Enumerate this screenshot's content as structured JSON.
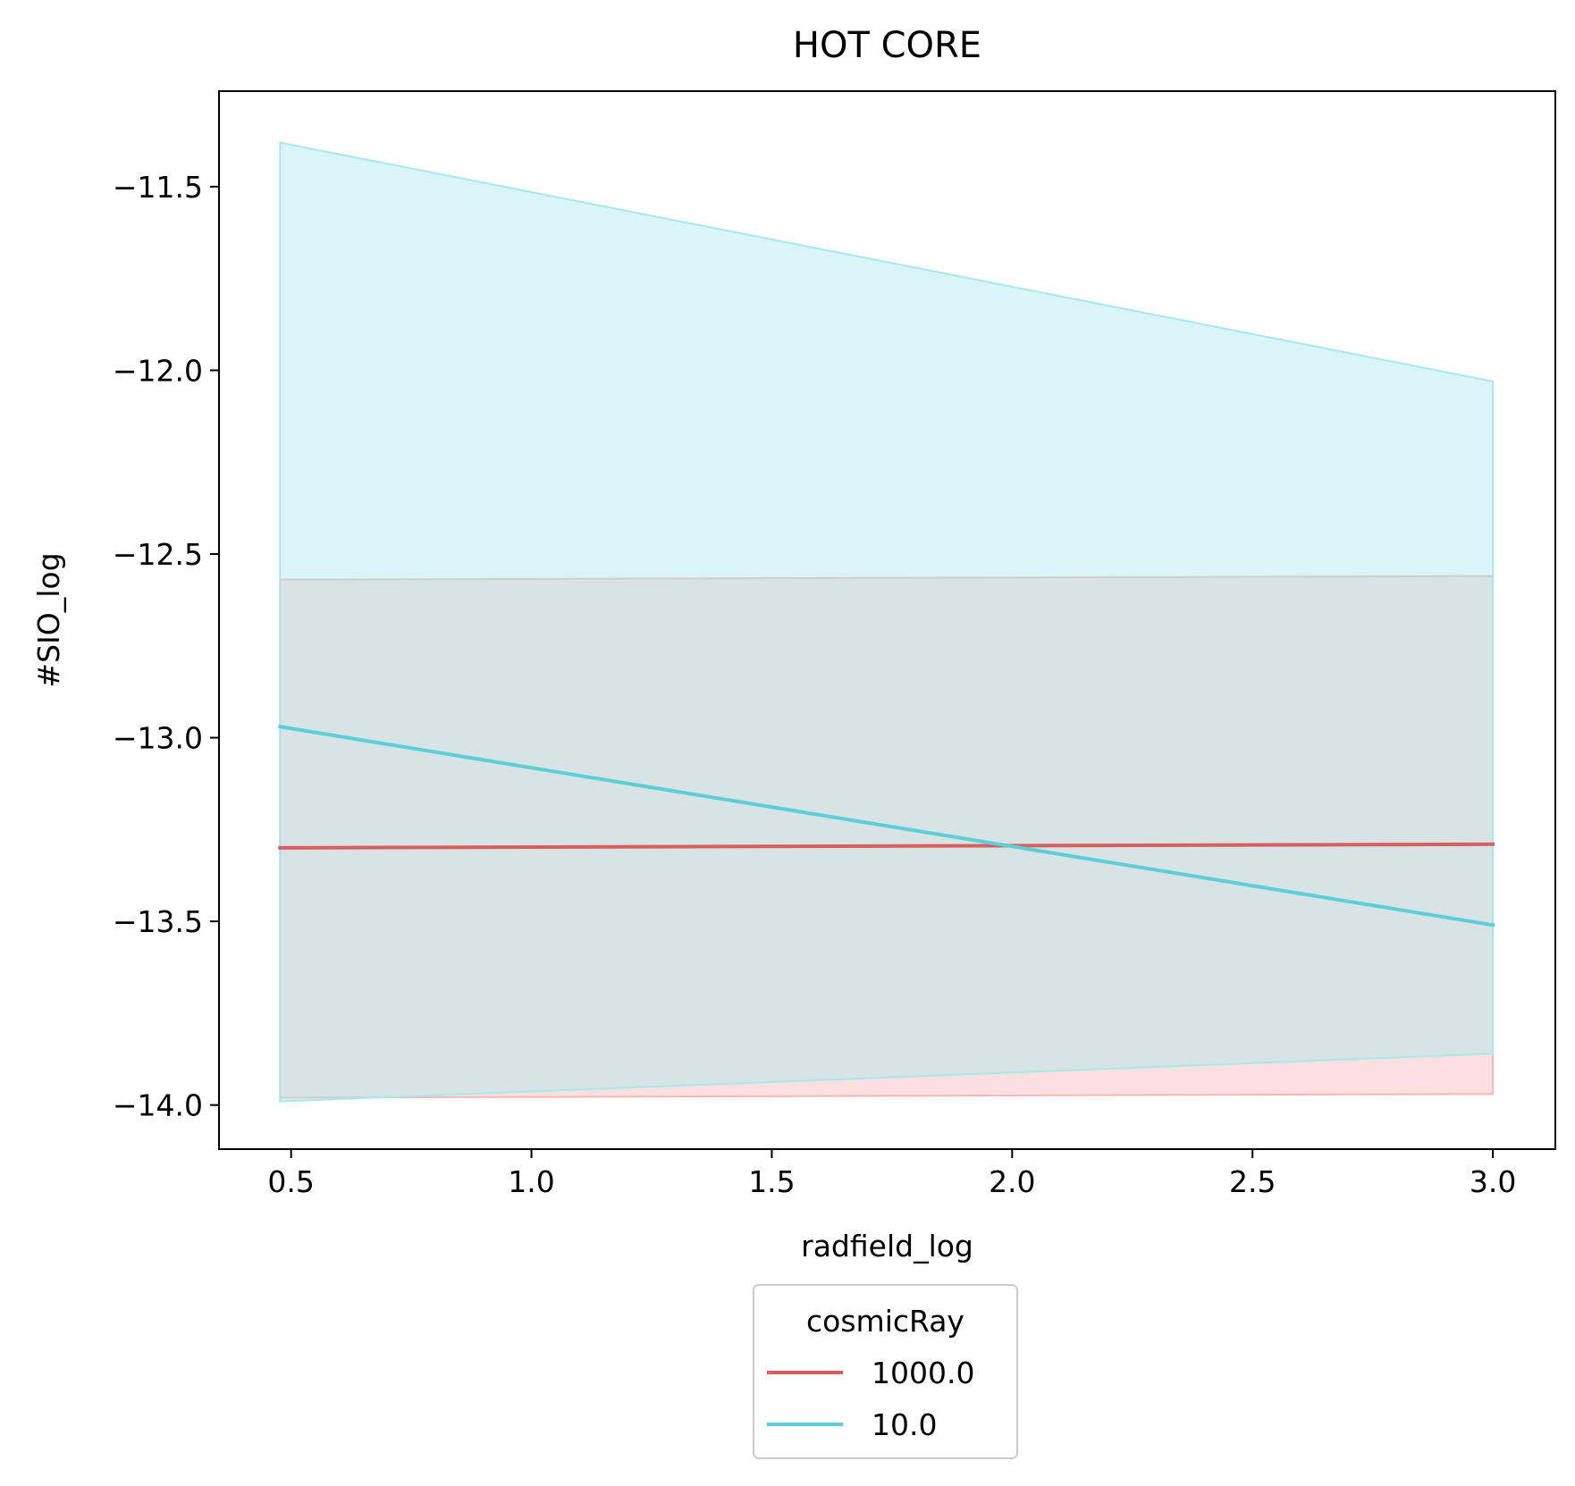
{
  "chart_data": {
    "type": "line",
    "title": "HOT CORE",
    "xlabel": "radfield_log",
    "ylabel": "#SIO_log",
    "xlim": [
      0.35,
      3.13
    ],
    "ylim": [
      -14.12,
      -11.24
    ],
    "xticks": [
      0.5,
      1.0,
      1.5,
      2.0,
      2.5,
      3.0
    ],
    "xtick_labels": [
      "0.5",
      "1.0",
      "1.5",
      "2.0",
      "2.5",
      "3.0"
    ],
    "yticks": [
      -11.5,
      -12.0,
      -12.5,
      -13.0,
      -13.5,
      -14.0
    ],
    "ytick_labels": [
      "−11.5",
      "−12.0",
      "−12.5",
      "−13.0",
      "−13.5",
      "−14.0"
    ],
    "grid": false,
    "legend": {
      "title": "cosmicRay",
      "placement": "below-center"
    },
    "series": [
      {
        "name": "1000.0",
        "color": "#d65f5f",
        "band_color": "#f2b8b5",
        "x": [
          0.477,
          3.0
        ],
        "y": [
          -13.3,
          -13.29
        ],
        "lower": [
          -13.98,
          -13.97
        ],
        "upper": [
          -12.57,
          -12.56
        ]
      },
      {
        "name": "10.0",
        "color": "#5bcfd8",
        "band_color": "#a8e8ec",
        "x": [
          0.477,
          3.0
        ],
        "y": [
          -12.97,
          -13.51
        ],
        "lower": [
          -13.99,
          -13.86
        ],
        "upper": [
          -11.38,
          -12.03
        ]
      }
    ]
  }
}
